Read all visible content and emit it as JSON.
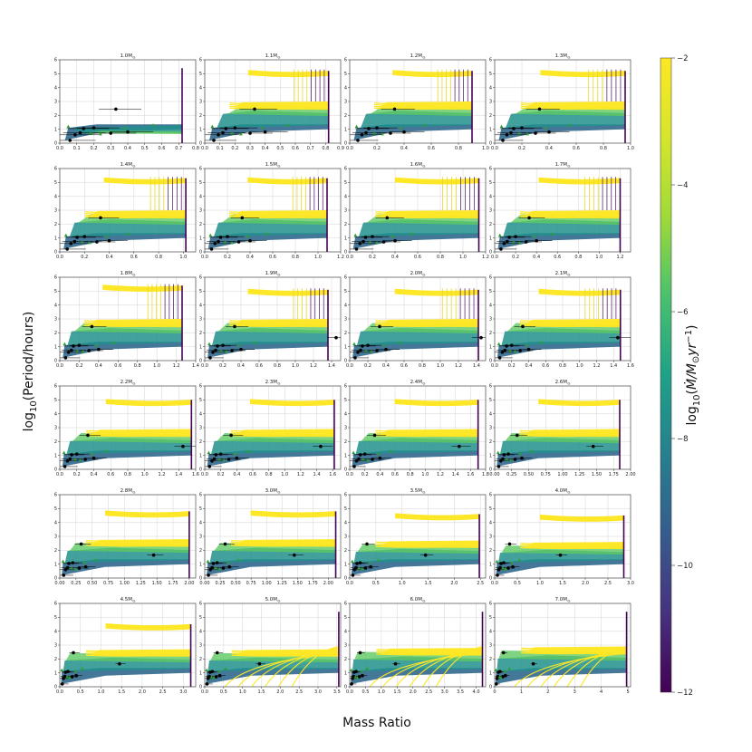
{
  "chart_data": {
    "type": "line",
    "xlabel": "Mass Ratio",
    "ylabel": "log$_{10}$(Period/hours)",
    "ylim": [
      0,
      6
    ],
    "y_ticks": [
      "0",
      "1",
      "2",
      "3",
      "4",
      "5",
      "6"
    ],
    "grid": true,
    "colorbar": {
      "label": "log$_{10}$($\\dot{M}$/$M_\\odot yr^{-1}$)",
      "range": [
        -12,
        -2
      ],
      "ticks": [
        "-2",
        "-4",
        "-6",
        "-8",
        "-10",
        "-12"
      ],
      "colormap": "viridis"
    },
    "colors": {
      "high_rate": "#fde725",
      "mid_rate": "#21918c",
      "low_rate": "#440154",
      "green_rate": "#5ec962",
      "observed_point": "#000000",
      "triangle_marker": "#2ca02c"
    },
    "panels": [
      {
        "title": "1.0M$_\\odot$",
        "xlim": [
          0,
          0.8
        ],
        "xticks": [
          "0.0",
          "0.1",
          "0.2",
          "0.3",
          "0.4",
          "0.5",
          "0.6",
          "0.7",
          "0.8"
        ],
        "qmax": 0.72,
        "band_top": 1.0,
        "upper": false,
        "upper_level": null
      },
      {
        "title": "1.1M$_\\odot$",
        "xlim": [
          0,
          0.9
        ],
        "xticks": [
          "0.0",
          "0.1",
          "0.2",
          "0.3",
          "0.4",
          "0.5",
          "0.6",
          "0.7",
          "0.8",
          "0.9"
        ],
        "qmax": 0.82,
        "band_top": 3.0,
        "upper": true,
        "upper_level": 5.2
      },
      {
        "title": "1.2M$_\\odot$",
        "xlim": [
          0,
          1.0
        ],
        "xticks": [
          "0.0",
          "0.2",
          "0.4",
          "0.6",
          "0.8",
          "1.0"
        ],
        "qmax": 0.9,
        "band_top": 3.0,
        "upper": true,
        "upper_level": 5.2
      },
      {
        "title": "1.3M$_\\odot$",
        "xlim": [
          0,
          1.0
        ],
        "xticks": [
          "0.0",
          "0.2",
          "0.4",
          "0.6",
          "0.8",
          "1.0"
        ],
        "qmax": 0.96,
        "band_top": 3.0,
        "upper": true,
        "upper_level": 5.2
      },
      {
        "title": "1.4M$_\\odot$",
        "xlim": [
          0,
          1.1
        ],
        "xticks": [
          "0.0",
          "0.2",
          "0.4",
          "0.6",
          "0.8",
          "1.0"
        ],
        "qmax": 1.02,
        "band_top": 3.0,
        "upper": true,
        "upper_level": 5.3
      },
      {
        "title": "1.5M$_\\odot$",
        "xlim": [
          0,
          1.2
        ],
        "xticks": [
          "0.0",
          "0.2",
          "0.4",
          "0.6",
          "0.8",
          "1.0",
          "1.2"
        ],
        "qmax": 1.08,
        "band_top": 3.0,
        "upper": true,
        "upper_level": 5.3
      },
      {
        "title": "1.6M$_\\odot$",
        "xlim": [
          0,
          1.2
        ],
        "xticks": [
          "0.0",
          "0.2",
          "0.4",
          "0.6",
          "0.8",
          "1.0",
          "1.2"
        ],
        "qmax": 1.14,
        "band_top": 3.0,
        "upper": true,
        "upper_level": 5.3
      },
      {
        "title": "1.7M$_\\odot$",
        "xlim": [
          0,
          1.3
        ],
        "xticks": [
          "0.0",
          "0.2",
          "0.4",
          "0.6",
          "0.8",
          "1.0",
          "1.2"
        ],
        "qmax": 1.2,
        "band_top": 3.0,
        "upper": true,
        "upper_level": 5.3
      },
      {
        "title": "1.8M$_\\odot$",
        "xlim": [
          0,
          1.4
        ],
        "xticks": [
          "0.0",
          "0.2",
          "0.4",
          "0.6",
          "0.8",
          "1.0",
          "1.2",
          "1.4"
        ],
        "qmax": 1.26,
        "band_top": 3.0,
        "upper": true,
        "upper_level": 5.4
      },
      {
        "title": "1.9M$_\\odot$",
        "xlim": [
          0,
          1.5
        ],
        "xticks": [
          "0.0",
          "0.2",
          "0.4",
          "0.6",
          "0.8",
          "1.0",
          "1.2",
          "1.4"
        ],
        "qmax": 1.36,
        "band_top": 3.0,
        "upper": true,
        "upper_level": 5.1
      },
      {
        "title": "2.0M$_\\odot$",
        "xlim": [
          0,
          1.5
        ],
        "xticks": [
          "0.0",
          "0.2",
          "0.4",
          "0.6",
          "0.8",
          "1.0",
          "1.2",
          "1.4"
        ],
        "qmax": 1.42,
        "band_top": 3.0,
        "upper": true,
        "upper_level": 5.1
      },
      {
        "title": "2.1M$_\\odot$",
        "xlim": [
          0,
          1.6
        ],
        "xticks": [
          "0.0",
          "0.2",
          "0.4",
          "0.6",
          "0.8",
          "1.0",
          "1.2",
          "1.4",
          "1.6"
        ],
        "qmax": 1.48,
        "band_top": 3.0,
        "upper": true,
        "upper_level": 5.1
      },
      {
        "title": "2.2M$_\\odot$",
        "xlim": [
          0,
          1.6
        ],
        "xticks": [
          "0.0",
          "0.2",
          "0.4",
          "0.6",
          "0.8",
          "1.0",
          "1.2",
          "1.4",
          "1.6"
        ],
        "qmax": 1.55,
        "band_top": 2.9,
        "upper": true,
        "upper_level": 5.0
      },
      {
        "title": "2.3M$_\\odot$",
        "xlim": [
          0,
          1.7
        ],
        "xticks": [
          "0.0",
          "0.2",
          "0.4",
          "0.6",
          "0.8",
          "1.0",
          "1.2",
          "1.4",
          "1.6"
        ],
        "qmax": 1.62,
        "band_top": 2.9,
        "upper": true,
        "upper_level": 5.0
      },
      {
        "title": "2.4M$_\\odot$",
        "xlim": [
          0,
          1.8
        ],
        "xticks": [
          "0.0",
          "0.2",
          "0.4",
          "0.6",
          "0.8",
          "1.0",
          "1.2",
          "1.4",
          "1.6",
          "1.8"
        ],
        "qmax": 1.7,
        "band_top": 2.9,
        "upper": true,
        "upper_level": 5.0
      },
      {
        "title": "2.6M$_\\odot$",
        "xlim": [
          0,
          2.0
        ],
        "xticks": [
          "0.00",
          "0.25",
          "0.50",
          "0.75",
          "1.00",
          "1.25",
          "1.50",
          "1.75",
          "2.00"
        ],
        "qmax": 1.84,
        "band_top": 2.9,
        "upper": true,
        "upper_level": 5.0
      },
      {
        "title": "2.8M$_\\odot$",
        "xlim": [
          0,
          2.1
        ],
        "xticks": [
          "0.00",
          "0.25",
          "0.50",
          "0.75",
          "1.00",
          "1.25",
          "1.50",
          "1.75",
          "2.00"
        ],
        "qmax": 2.0,
        "band_top": 2.8,
        "upper": true,
        "upper_level": 4.8
      },
      {
        "title": "3.0M$_\\odot$",
        "xlim": [
          0,
          2.2
        ],
        "xticks": [
          "0.00",
          "0.25",
          "0.50",
          "0.75",
          "1.00",
          "1.25",
          "1.50",
          "1.75",
          "2.00"
        ],
        "qmax": 2.12,
        "band_top": 2.8,
        "upper": true,
        "upper_level": 4.8
      },
      {
        "title": "3.5M$_\\odot$",
        "xlim": [
          0,
          2.6
        ],
        "xticks": [
          "0.0",
          "0.5",
          "1.0",
          "1.5",
          "2.0",
          "2.5"
        ],
        "qmax": 2.48,
        "band_top": 2.7,
        "upper": true,
        "upper_level": 4.6
      },
      {
        "title": "4.0M$_\\odot$",
        "xlim": [
          0,
          3.0
        ],
        "xticks": [
          "0.0",
          "0.5",
          "1.0",
          "1.5",
          "2.0",
          "2.5",
          "3.0"
        ],
        "qmax": 2.85,
        "band_top": 2.6,
        "upper": true,
        "upper_level": 4.5
      },
      {
        "title": "4.5M$_\\odot$",
        "xlim": [
          0,
          3.3
        ],
        "xticks": [
          "0.0",
          "0.5",
          "1.0",
          "1.5",
          "2.0",
          "2.5",
          "3.0"
        ],
        "qmax": 3.18,
        "band_top": 2.7,
        "upper": true,
        "upper_level": 4.5
      },
      {
        "title": "5.0M$_\\odot$",
        "xlim": [
          0,
          3.6
        ],
        "xticks": [
          "0.0",
          "0.5",
          "1.0",
          "1.5",
          "2.0",
          "2.5",
          "3.0",
          "3.5"
        ],
        "qmax": 3.55,
        "band_top": 2.7,
        "upper": false,
        "upper_level": null
      },
      {
        "title": "6.0M$_\\odot$",
        "xlim": [
          0,
          4.3
        ],
        "xticks": [
          "0.0",
          "0.5",
          "1.0",
          "1.5",
          "2.0",
          "2.5",
          "3.0",
          "3.5",
          "4.0"
        ],
        "qmax": 4.2,
        "band_top": 2.8,
        "upper": false,
        "upper_level": null
      },
      {
        "title": "7.0M$_\\odot$",
        "xlim": [
          0,
          5.1
        ],
        "xticks": [
          "0",
          "1",
          "2",
          "3",
          "4",
          "5"
        ],
        "qmax": 4.95,
        "band_top": 2.9,
        "upper": false,
        "upper_level": null
      }
    ],
    "observed_points": [
      {
        "q": 0.06,
        "logP": 0.2
      },
      {
        "q": 0.09,
        "logP": 0.6
      },
      {
        "q": 0.12,
        "logP": 0.75
      },
      {
        "q": 0.14,
        "logP": 1.05
      },
      {
        "q": 0.2,
        "logP": 1.1
      },
      {
        "q": 0.3,
        "logP": 0.72
      },
      {
        "q": 0.33,
        "logP": 2.45
      },
      {
        "q": 0.4,
        "logP": 0.8
      },
      {
        "q": 1.45,
        "logP": 1.65
      }
    ],
    "triangle_points": [
      {
        "q": 0.05,
        "logP": 1.2
      },
      {
        "q": 0.18,
        "logP": 0.7
      },
      {
        "q": 0.24,
        "logP": 0.65
      },
      {
        "q": 0.38,
        "logP": 1.1
      },
      {
        "q": 0.55,
        "logP": 1.3
      }
    ]
  }
}
